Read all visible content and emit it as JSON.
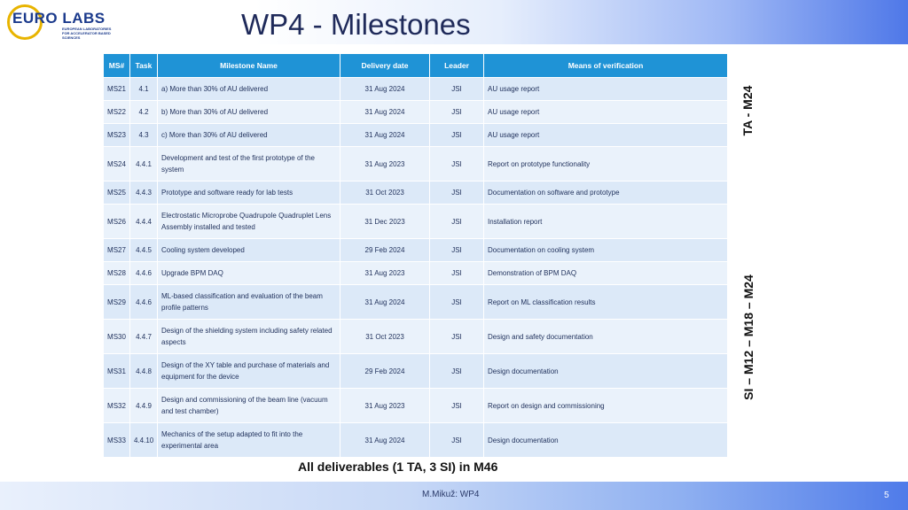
{
  "header": {
    "logo_text": "EURO LABS",
    "logo_sub": "EUROPEAN LABORATORIES FOR ACCELERATOR BASED SCIENCES",
    "title": "WP4 - Milestones"
  },
  "table": {
    "columns": [
      "MS#",
      "Task",
      "Milestone Name",
      "Delivery date",
      "Leader",
      "Means of verification"
    ],
    "rows": [
      {
        "ms": "MS21",
        "task": "4.1",
        "name": "a) More than 30% of AU delivered",
        "date": "31 Aug 2024",
        "leader": "JSI",
        "verification": "AU usage report"
      },
      {
        "ms": "MS22",
        "task": "4.2",
        "name": "b) More than 30% of AU delivered",
        "date": "31 Aug 2024",
        "leader": "JSI",
        "verification": "AU usage report"
      },
      {
        "ms": "MS23",
        "task": "4.3",
        "name": "c) More than 30% of AU delivered",
        "date": "31 Aug 2024",
        "leader": "JSI",
        "verification": "AU usage report"
      },
      {
        "ms": "MS24",
        "task": "4.4.1",
        "name": "Development and test of the first prototype of the system",
        "date": "31 Aug 2023",
        "leader": "JSI",
        "verification": "Report on prototype functionality"
      },
      {
        "ms": "MS25",
        "task": "4.4.3",
        "name": "Prototype and software ready for lab tests",
        "date": "31 Oct 2023",
        "leader": "JSI",
        "verification": "Documentation on software and prototype"
      },
      {
        "ms": "MS26",
        "task": "4.4.4",
        "name": "Electrostatic Microprobe Quadrupole Quadruplet Lens Assembly installed and tested",
        "date": "31 Dec 2023",
        "leader": "JSI",
        "verification": "Installation report"
      },
      {
        "ms": "MS27",
        "task": "4.4.5",
        "name": "Cooling system developed",
        "date": "29 Feb 2024",
        "leader": "JSI",
        "verification": "Documentation on cooling system"
      },
      {
        "ms": "MS28",
        "task": "4.4.6",
        "name": "Upgrade BPM DAQ",
        "date": "31 Aug 2023",
        "leader": "JSI",
        "verification": "Demonstration of BPM DAQ"
      },
      {
        "ms": "MS29",
        "task": "4.4.6",
        "name": "ML-based classification and evaluation of the beam profile patterns",
        "date": "31 Aug 2024",
        "leader": "JSI",
        "verification": "Report on ML classification results"
      },
      {
        "ms": "MS30",
        "task": "4.4.7",
        "name": "Design of the shielding system including safety related aspects",
        "date": "31 Oct 2023",
        "leader": "JSI",
        "verification": "Design and safety documentation"
      },
      {
        "ms": "MS31",
        "task": "4.4.8",
        "name": "Design of the XY table and purchase of materials and equipment for the device",
        "date": "29 Feb 2024",
        "leader": "JSI",
        "verification": "Design documentation"
      },
      {
        "ms": "MS32",
        "task": "4.4.9",
        "name": "Design and commissioning of the beam line (vacuum and test chamber)",
        "date": "31 Aug 2023",
        "leader": "JSI",
        "verification": "Report on design and commissioning"
      },
      {
        "ms": "MS33",
        "task": "4.4.10",
        "name": "Mechanics of the setup adapted to fit into the experimental area",
        "date": "31 Aug 2024",
        "leader": "JSI",
        "verification": "Design documentation"
      }
    ]
  },
  "side_labels": {
    "ta": "TA - M24",
    "si": "SI – M12 – M18 – M24"
  },
  "footnote": "All deliverables (1 TA, 3 SI)  in M46",
  "footer": {
    "author": "M.Mikuž: WP4",
    "page": "5"
  }
}
